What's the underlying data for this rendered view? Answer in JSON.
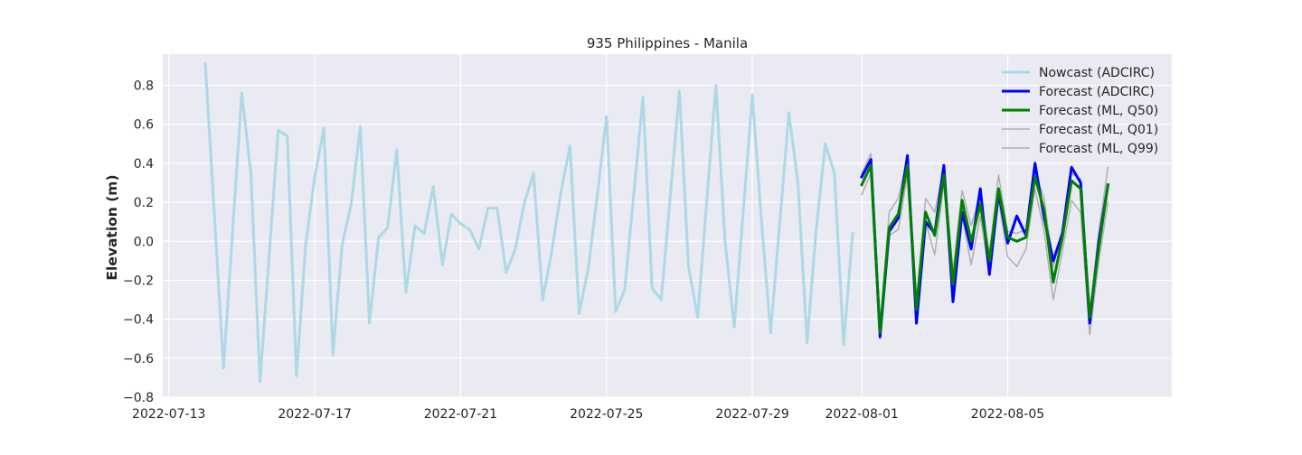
{
  "chart_data": {
    "type": "line",
    "title": "935 Philippines - Manila",
    "xlabel": "",
    "ylabel": "Elevation (m)",
    "x_axis": {
      "type": "date",
      "range": [
        "2022-07-12T20:00",
        "2022-08-09T12:00"
      ],
      "ticks": [
        "2022-07-13",
        "2022-07-17",
        "2022-07-21",
        "2022-07-25",
        "2022-07-29",
        "2022-08-01",
        "2022-08-05"
      ]
    },
    "ylim": [
      -0.8,
      0.96
    ],
    "yticks": [
      -0.8,
      -0.6,
      -0.4,
      -0.2,
      0.0,
      0.2,
      0.4,
      0.6,
      0.8
    ],
    "ytick_labels": [
      "−0.8",
      "−0.6",
      "−0.4",
      "−0.2",
      "0.0",
      "0.2",
      "0.4",
      "0.6",
      "0.8"
    ],
    "grid": true,
    "legend_position": "top-right",
    "background": "#eaeaf2",
    "series": [
      {
        "name": "Nowcast (ADCIRC)",
        "color": "#add8e6",
        "width": 3,
        "points": [
          [
            "2022-07-14T00:00",
            0.91
          ],
          [
            "2022-07-14T12:00",
            -0.65
          ],
          [
            "2022-07-15T00:00",
            0.76
          ],
          [
            "2022-07-15T06:00",
            0.35
          ],
          [
            "2022-07-15T12:00",
            -0.72
          ],
          [
            "2022-07-16T00:00",
            0.57
          ],
          [
            "2022-07-16T06:00",
            0.54
          ],
          [
            "2022-07-16T12:00",
            -0.69
          ],
          [
            "2022-07-16T18:00",
            -0.02
          ],
          [
            "2022-07-17T00:00",
            0.33
          ],
          [
            "2022-07-17T06:00",
            0.58
          ],
          [
            "2022-07-17T12:00",
            -0.58
          ],
          [
            "2022-07-17T18:00",
            -0.02
          ],
          [
            "2022-07-18T00:00",
            0.19
          ],
          [
            "2022-07-18T06:00",
            0.59
          ],
          [
            "2022-07-18T12:00",
            -0.42
          ],
          [
            "2022-07-18T18:00",
            0.02
          ],
          [
            "2022-07-19T00:00",
            0.07
          ],
          [
            "2022-07-19T06:00",
            0.47
          ],
          [
            "2022-07-19T12:00",
            -0.26
          ],
          [
            "2022-07-19T18:00",
            0.08
          ],
          [
            "2022-07-20T00:00",
            0.04
          ],
          [
            "2022-07-20T06:00",
            0.28
          ],
          [
            "2022-07-20T12:00",
            -0.12
          ],
          [
            "2022-07-20T18:00",
            0.14
          ],
          [
            "2022-07-21T00:00",
            0.09
          ],
          [
            "2022-07-21T06:00",
            0.06
          ],
          [
            "2022-07-21T12:00",
            -0.04
          ],
          [
            "2022-07-21T18:00",
            0.17
          ],
          [
            "2022-07-22T00:00",
            0.17
          ],
          [
            "2022-07-22T06:00",
            -0.16
          ],
          [
            "2022-07-22T12:00",
            -0.04
          ],
          [
            "2022-07-22T18:00",
            0.2
          ],
          [
            "2022-07-23T00:00",
            0.35
          ],
          [
            "2022-07-23T06:00",
            -0.3
          ],
          [
            "2022-07-23T12:00",
            -0.05
          ],
          [
            "2022-07-23T18:00",
            0.25
          ],
          [
            "2022-07-24T00:00",
            0.49
          ],
          [
            "2022-07-24T06:00",
            -0.37
          ],
          [
            "2022-07-24T12:00",
            -0.14
          ],
          [
            "2022-07-24T18:00",
            0.24
          ],
          [
            "2022-07-25T00:00",
            0.64
          ],
          [
            "2022-07-25T06:00",
            -0.36
          ],
          [
            "2022-07-25T12:00",
            -0.25
          ],
          [
            "2022-07-26T00:00",
            0.74
          ],
          [
            "2022-07-26T06:00",
            -0.24
          ],
          [
            "2022-07-26T12:00",
            -0.3
          ],
          [
            "2022-07-27T00:00",
            0.77
          ],
          [
            "2022-07-27T06:00",
            -0.13
          ],
          [
            "2022-07-27T12:00",
            -0.39
          ],
          [
            "2022-07-28T00:00",
            0.8
          ],
          [
            "2022-07-28T06:00",
            0.0
          ],
          [
            "2022-07-28T12:00",
            -0.44
          ],
          [
            "2022-07-29T00:00",
            0.75
          ],
          [
            "2022-07-29T06:00",
            0.1
          ],
          [
            "2022-07-29T12:00",
            -0.47
          ],
          [
            "2022-07-30T00:00",
            0.66
          ],
          [
            "2022-07-30T06:00",
            0.3
          ],
          [
            "2022-07-30T12:00",
            -0.52
          ],
          [
            "2022-07-30T18:00",
            0.06
          ],
          [
            "2022-07-31T00:00",
            0.5
          ],
          [
            "2022-07-31T06:00",
            0.35
          ],
          [
            "2022-07-31T12:00",
            -0.53
          ],
          [
            "2022-07-31T18:00",
            0.04
          ]
        ]
      },
      {
        "name": "Forecast (ADCIRC)",
        "color": "#0000ff",
        "width": 3,
        "points": [
          [
            "2022-08-01T00:00",
            0.33
          ],
          [
            "2022-08-01T06:00",
            0.42
          ],
          [
            "2022-08-01T12:00",
            -0.49
          ],
          [
            "2022-08-01T18:00",
            0.05
          ],
          [
            "2022-08-02T00:00",
            0.12
          ],
          [
            "2022-08-02T06:00",
            0.44
          ],
          [
            "2022-08-02T12:00",
            -0.42
          ],
          [
            "2022-08-02T18:00",
            0.1
          ],
          [
            "2022-08-03T00:00",
            0.04
          ],
          [
            "2022-08-03T06:00",
            0.39
          ],
          [
            "2022-08-03T12:00",
            -0.31
          ],
          [
            "2022-08-03T18:00",
            0.15
          ],
          [
            "2022-08-04T00:00",
            -0.04
          ],
          [
            "2022-08-04T06:00",
            0.27
          ],
          [
            "2022-08-04T12:00",
            -0.17
          ],
          [
            "2022-08-04T18:00",
            0.25
          ],
          [
            "2022-08-05T00:00",
            -0.01
          ],
          [
            "2022-08-05T06:00",
            0.13
          ],
          [
            "2022-08-05T12:00",
            0.03
          ],
          [
            "2022-08-05T18:00",
            0.4
          ],
          [
            "2022-08-06T00:00",
            0.12
          ],
          [
            "2022-08-06T06:00",
            -0.1
          ],
          [
            "2022-08-06T12:00",
            0.04
          ],
          [
            "2022-08-06T18:00",
            0.38
          ],
          [
            "2022-08-07T00:00",
            0.3
          ],
          [
            "2022-08-07T06:00",
            -0.42
          ],
          [
            "2022-08-07T12:00",
            0.0
          ],
          [
            "2022-08-07T18:00",
            0.29
          ]
        ]
      },
      {
        "name": "Forecast (ML, Q50)",
        "color": "#008000",
        "width": 3,
        "points": [
          [
            "2022-08-01T00:00",
            0.29
          ],
          [
            "2022-08-01T06:00",
            0.39
          ],
          [
            "2022-08-01T12:00",
            -0.47
          ],
          [
            "2022-08-01T18:00",
            0.07
          ],
          [
            "2022-08-02T00:00",
            0.14
          ],
          [
            "2022-08-02T06:00",
            0.39
          ],
          [
            "2022-08-02T12:00",
            -0.35
          ],
          [
            "2022-08-02T18:00",
            0.15
          ],
          [
            "2022-08-03T00:00",
            0.03
          ],
          [
            "2022-08-03T06:00",
            0.34
          ],
          [
            "2022-08-03T12:00",
            -0.22
          ],
          [
            "2022-08-03T18:00",
            0.21
          ],
          [
            "2022-08-04T00:00",
            0.0
          ],
          [
            "2022-08-04T06:00",
            0.19
          ],
          [
            "2022-08-04T12:00",
            -0.1
          ],
          [
            "2022-08-04T18:00",
            0.27
          ],
          [
            "2022-08-05T00:00",
            0.02
          ],
          [
            "2022-08-05T06:00",
            0.0
          ],
          [
            "2022-08-05T12:00",
            0.02
          ],
          [
            "2022-08-05T18:00",
            0.33
          ],
          [
            "2022-08-06T00:00",
            0.16
          ],
          [
            "2022-08-06T06:00",
            -0.21
          ],
          [
            "2022-08-06T12:00",
            0.02
          ],
          [
            "2022-08-06T18:00",
            0.31
          ],
          [
            "2022-08-07T00:00",
            0.27
          ],
          [
            "2022-08-07T06:00",
            -0.39
          ],
          [
            "2022-08-07T12:00",
            -0.03
          ],
          [
            "2022-08-07T18:00",
            0.29
          ]
        ]
      },
      {
        "name": "Forecast (ML, Q01)",
        "color": "#b0b0b0",
        "width": 1.5,
        "points": [
          [
            "2022-08-01T00:00",
            0.24
          ],
          [
            "2022-08-01T06:00",
            0.35
          ],
          [
            "2022-08-01T12:00",
            -0.5
          ],
          [
            "2022-08-01T18:00",
            0.03
          ],
          [
            "2022-08-02T00:00",
            0.06
          ],
          [
            "2022-08-02T06:00",
            0.34
          ],
          [
            "2022-08-02T12:00",
            -0.4
          ],
          [
            "2022-08-02T18:00",
            0.1
          ],
          [
            "2022-08-03T00:00",
            -0.07
          ],
          [
            "2022-08-03T06:00",
            0.29
          ],
          [
            "2022-08-03T12:00",
            -0.28
          ],
          [
            "2022-08-03T18:00",
            0.13
          ],
          [
            "2022-08-04T00:00",
            -0.12
          ],
          [
            "2022-08-04T06:00",
            0.13
          ],
          [
            "2022-08-04T12:00",
            -0.17
          ],
          [
            "2022-08-04T18:00",
            0.21
          ],
          [
            "2022-08-05T00:00",
            -0.08
          ],
          [
            "2022-08-05T06:00",
            -0.13
          ],
          [
            "2022-08-05T12:00",
            -0.04
          ],
          [
            "2022-08-05T18:00",
            0.27
          ],
          [
            "2022-08-06T00:00",
            0.05
          ],
          [
            "2022-08-06T06:00",
            -0.3
          ],
          [
            "2022-08-06T12:00",
            -0.05
          ],
          [
            "2022-08-06T18:00",
            0.21
          ],
          [
            "2022-08-07T00:00",
            0.15
          ],
          [
            "2022-08-07T06:00",
            -0.48
          ],
          [
            "2022-08-07T12:00",
            -0.1
          ],
          [
            "2022-08-07T18:00",
            0.2
          ]
        ]
      },
      {
        "name": "Forecast (ML, Q99)",
        "color": "#b0b0b0",
        "width": 1.5,
        "points": [
          [
            "2022-08-01T00:00",
            0.35
          ],
          [
            "2022-08-01T06:00",
            0.45
          ],
          [
            "2022-08-01T12:00",
            -0.45
          ],
          [
            "2022-08-01T18:00",
            0.15
          ],
          [
            "2022-08-02T00:00",
            0.22
          ],
          [
            "2022-08-02T06:00",
            0.43
          ],
          [
            "2022-08-02T12:00",
            -0.3
          ],
          [
            "2022-08-02T18:00",
            0.22
          ],
          [
            "2022-08-03T00:00",
            0.15
          ],
          [
            "2022-08-03T06:00",
            0.38
          ],
          [
            "2022-08-03T12:00",
            -0.15
          ],
          [
            "2022-08-03T18:00",
            0.26
          ],
          [
            "2022-08-04T00:00",
            0.08
          ],
          [
            "2022-08-04T06:00",
            0.24
          ],
          [
            "2022-08-04T12:00",
            -0.06
          ],
          [
            "2022-08-04T18:00",
            0.34
          ],
          [
            "2022-08-05T00:00",
            0.05
          ],
          [
            "2022-08-05T06:00",
            0.04
          ],
          [
            "2022-08-05T12:00",
            0.06
          ],
          [
            "2022-08-05T18:00",
            0.35
          ],
          [
            "2022-08-06T00:00",
            0.22
          ],
          [
            "2022-08-06T06:00",
            -0.13
          ],
          [
            "2022-08-06T12:00",
            0.06
          ],
          [
            "2022-08-06T18:00",
            0.35
          ],
          [
            "2022-08-07T00:00",
            0.32
          ],
          [
            "2022-08-07T06:00",
            -0.36
          ],
          [
            "2022-08-07T12:00",
            0.05
          ],
          [
            "2022-08-07T18:00",
            0.38
          ]
        ]
      }
    ]
  }
}
